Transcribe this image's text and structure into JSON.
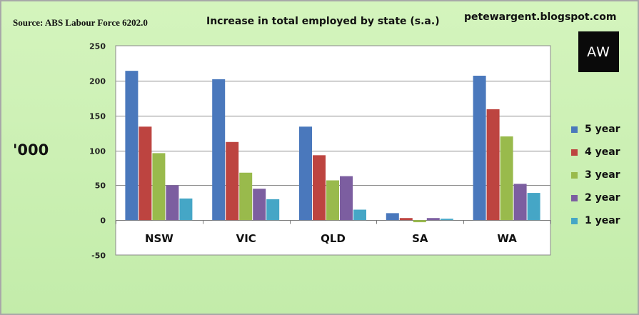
{
  "source": "Source: ABS Labour Force 6202.0",
  "site": "petewargent.blogspot.com",
  "logo_text": "AW",
  "chart_data": {
    "type": "bar",
    "title": "Increase in total employed by state (s.a.)",
    "ylabel": "'000",
    "categories": [
      "NSW",
      "VIC",
      "QLD",
      "SA",
      "WA"
    ],
    "ylim": [
      -50,
      250
    ],
    "yticks": [
      -50,
      0,
      50,
      100,
      150,
      200,
      250
    ],
    "grid": true,
    "legend_position": "right",
    "series": [
      {
        "name": "5 year",
        "color": "#4a78bc",
        "values": [
          214,
          202,
          134,
          10,
          207
        ]
      },
      {
        "name": "4 year",
        "color": "#bd4440",
        "values": [
          134,
          112,
          93,
          3,
          159
        ]
      },
      {
        "name": "3 year",
        "color": "#99ba4c",
        "values": [
          96,
          68,
          57,
          -3,
          120
        ]
      },
      {
        "name": "2 year",
        "color": "#7c5ea0",
        "values": [
          50,
          45,
          63,
          3,
          52
        ]
      },
      {
        "name": "1 year",
        "color": "#45a6c6",
        "values": [
          31,
          30,
          15,
          2,
          39
        ]
      }
    ]
  }
}
